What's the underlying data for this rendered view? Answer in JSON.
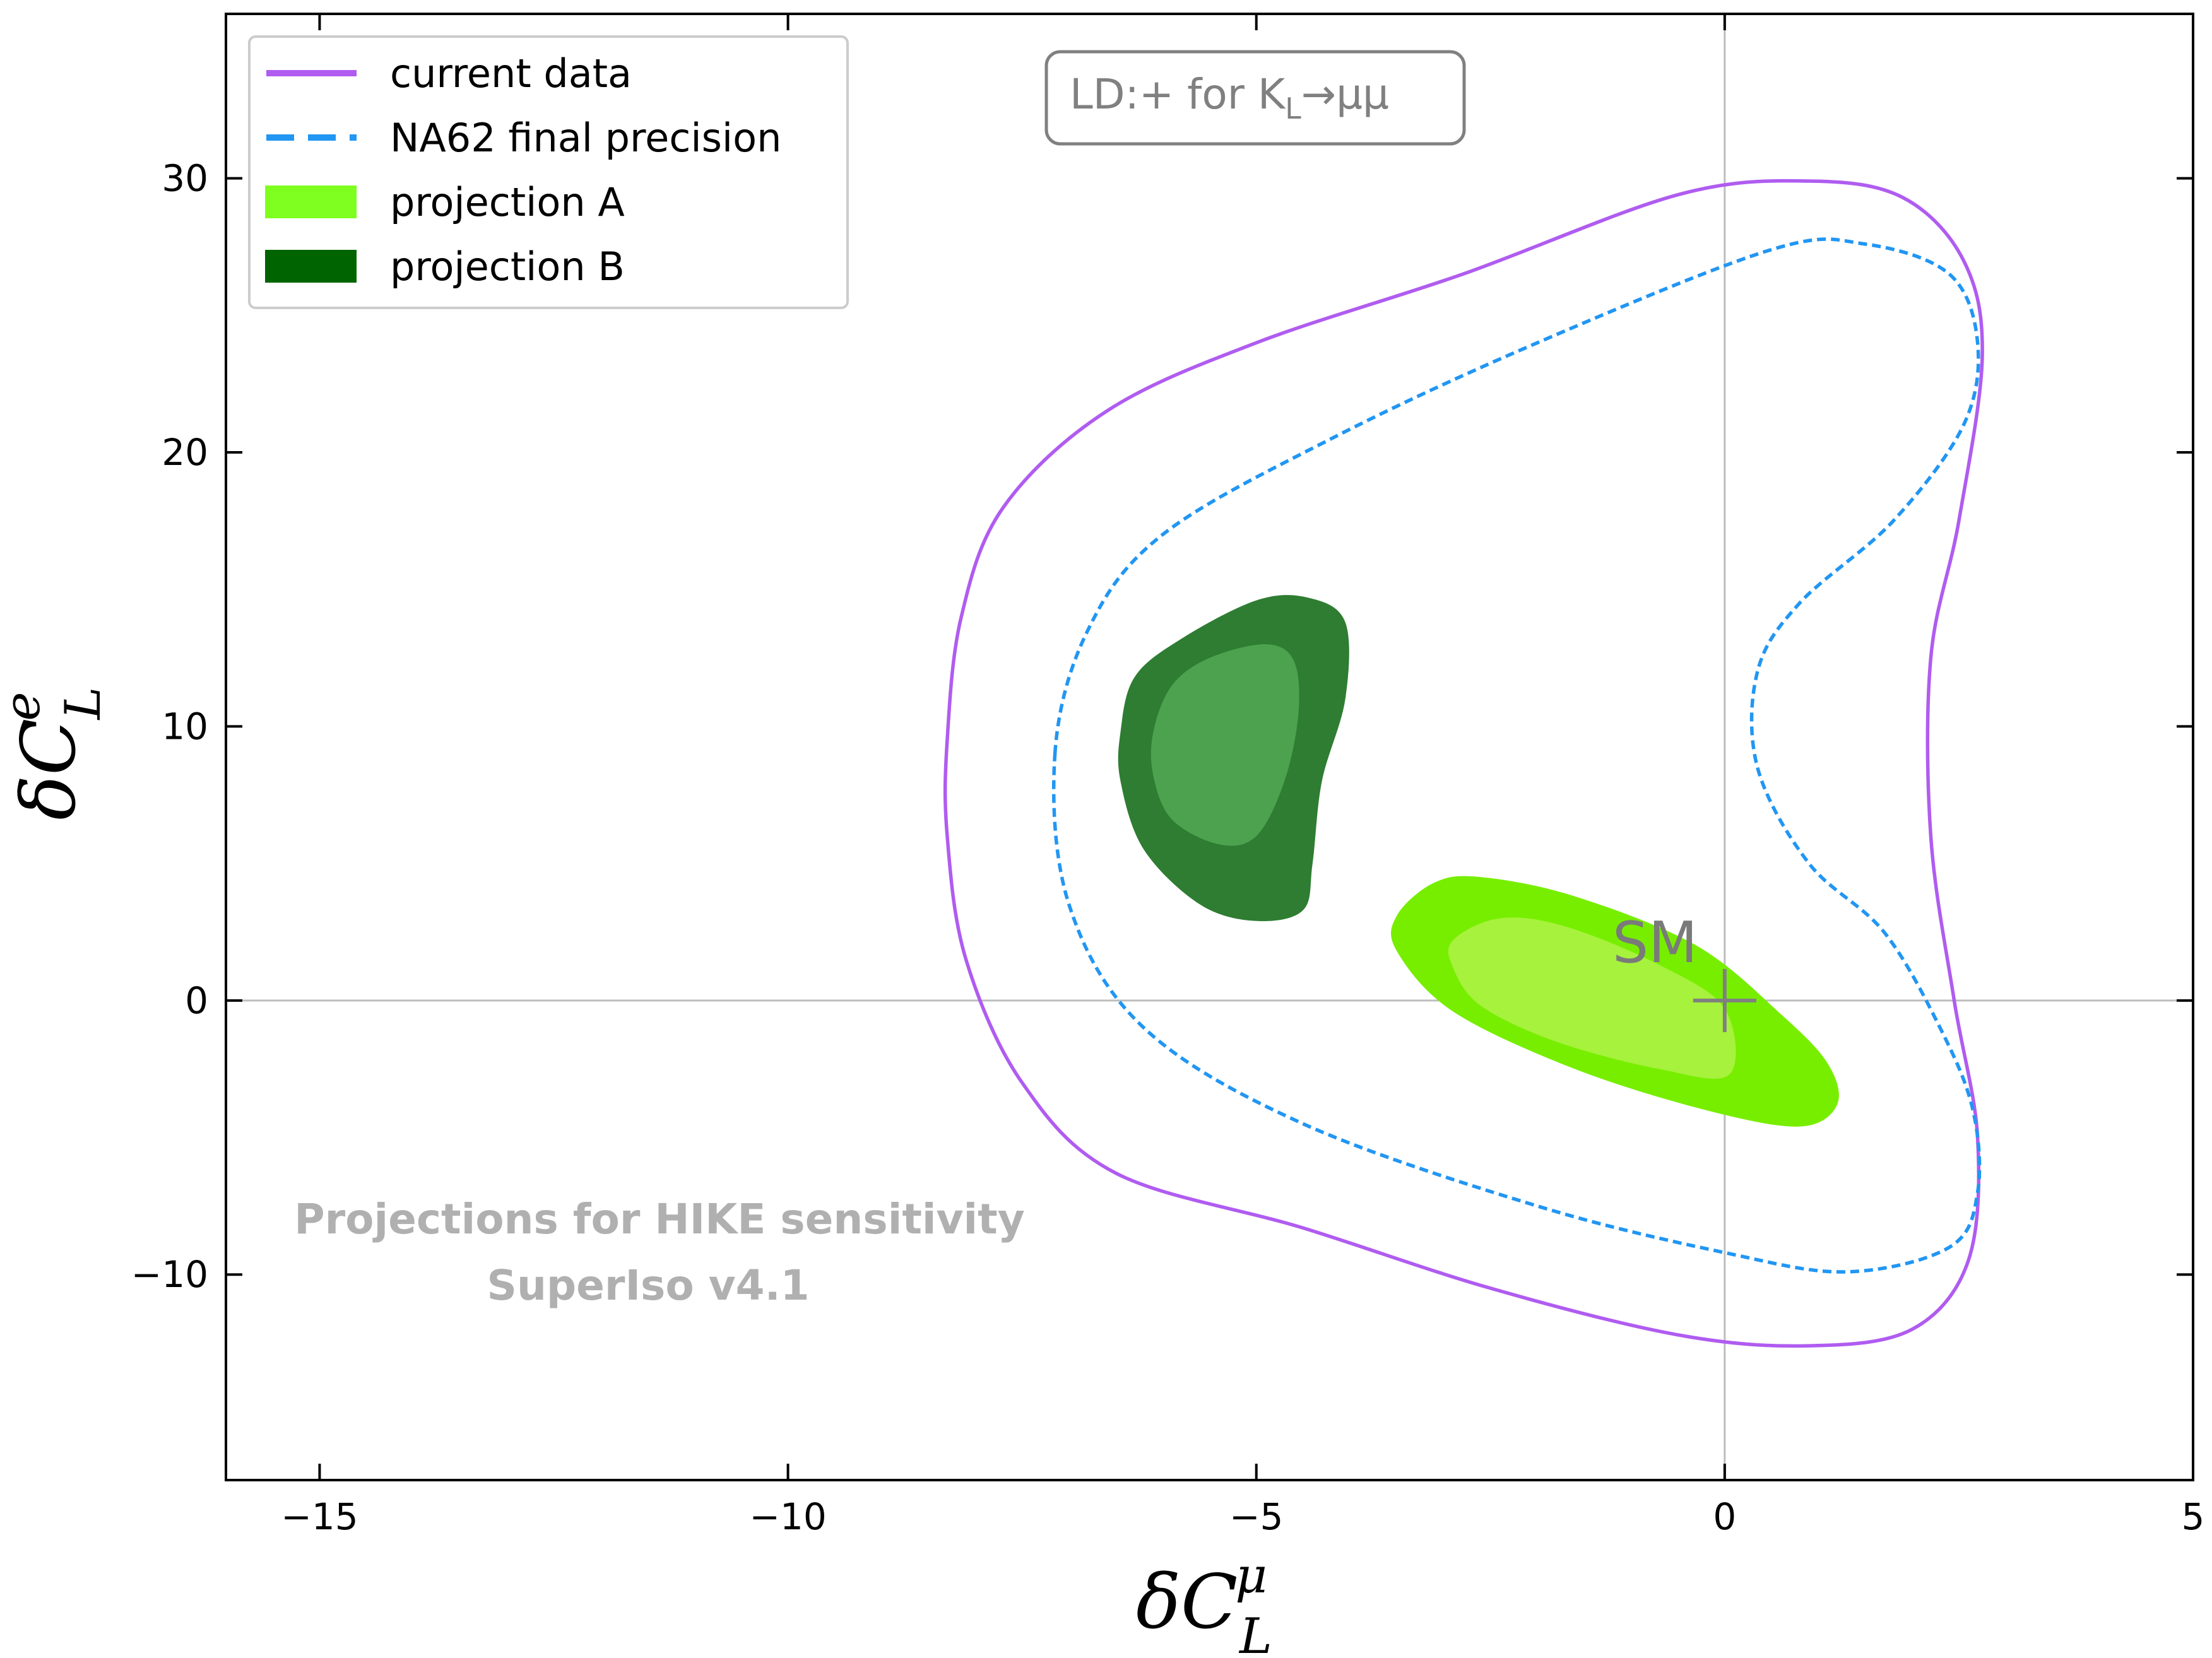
{
  "chart_data": {
    "type": "contour",
    "xlabel_base": "δC",
    "xlabel_sub": "L",
    "xlabel_sup": "μ",
    "ylabel_base": "δC",
    "ylabel_sub": "L",
    "ylabel_sup": "e",
    "xlim": [
      -16,
      5
    ],
    "ylim": [
      -17.5,
      36
    ],
    "xticks": [
      {
        "value": -15,
        "label": "−15"
      },
      {
        "value": -10,
        "label": "−10"
      },
      {
        "value": -5,
        "label": "−5"
      },
      {
        "value": 0,
        "label": "0"
      },
      {
        "value": 5,
        "label": "5"
      }
    ],
    "yticks": [
      {
        "value": -10,
        "label": "−10"
      },
      {
        "value": 0,
        "label": "0"
      },
      {
        "value": 10,
        "label": "10"
      },
      {
        "value": 20,
        "label": "20"
      },
      {
        "value": 30,
        "label": "30"
      }
    ],
    "grid": false,
    "reference_lines": {
      "x": 0,
      "y": 0,
      "color": "#bdbdbd"
    },
    "legend_position": "top-left",
    "legend": [
      {
        "label": "current data",
        "style": "line",
        "color": "#b05cf0"
      },
      {
        "label": "NA62 final precision",
        "style": "dashed",
        "color": "#2196f3"
      },
      {
        "label": "projection A",
        "style": "fill",
        "color": "#7fff1f"
      },
      {
        "label": "projection B",
        "style": "fill",
        "color": "#006400"
      }
    ],
    "annotation_box": {
      "text_main": "LD:+ for K",
      "text_sub": "L",
      "text_tail": "→μμ"
    },
    "watermark": [
      "Projections for HIKE sensitivity",
      "SuperIso v4.1"
    ],
    "sm_point": {
      "x": 0,
      "y": 0,
      "label": "SM"
    },
    "series": [
      {
        "name": "current data",
        "kind": "line",
        "color": "#b05cf0",
        "points": [
          [
            -8.3,
            9.5
          ],
          [
            -8.15,
            14
          ],
          [
            -7.7,
            18
          ],
          [
            -6.6,
            21.5
          ],
          [
            -5,
            24
          ],
          [
            -2.8,
            26.5
          ],
          [
            -0.5,
            29.4
          ],
          [
            0.9,
            29.9
          ],
          [
            1.9,
            29.3
          ],
          [
            2.55,
            27
          ],
          [
            2.75,
            23.5
          ],
          [
            2.5,
            17.5
          ],
          [
            2.2,
            12.5
          ],
          [
            2.2,
            6
          ],
          [
            2.45,
            0
          ],
          [
            2.7,
            -5
          ],
          [
            2.6,
            -9.5
          ],
          [
            2,
            -12
          ],
          [
            0.9,
            -12.6
          ],
          [
            -0.5,
            -12.2
          ],
          [
            -2.5,
            -10.5
          ],
          [
            -4.5,
            -8.3
          ],
          [
            -6.5,
            -6.3
          ],
          [
            -7.5,
            -3
          ],
          [
            -8.1,
            1.5
          ],
          [
            -8.3,
            6
          ],
          [
            -8.3,
            9.5
          ]
        ]
      },
      {
        "name": "NA62 final precision",
        "kind": "dashed",
        "color": "#2196f3",
        "points": [
          [
            -7.15,
            9
          ],
          [
            -6.8,
            13.5
          ],
          [
            -6,
            17
          ],
          [
            -4.2,
            20.5
          ],
          [
            -2,
            24
          ],
          [
            0.5,
            27.4
          ],
          [
            1.5,
            27.6
          ],
          [
            2.4,
            26.5
          ],
          [
            2.7,
            24
          ],
          [
            2.55,
            21
          ],
          [
            1.8,
            17.5
          ],
          [
            0.8,
            14.5
          ],
          [
            0.35,
            12
          ],
          [
            0.35,
            8.5
          ],
          [
            0.9,
            5
          ],
          [
            1.7,
            2.5
          ],
          [
            2.3,
            -1
          ],
          [
            2.65,
            -4
          ],
          [
            2.7,
            -7
          ],
          [
            2.4,
            -9
          ],
          [
            1.3,
            -9.9
          ],
          [
            0,
            -9.2
          ],
          [
            -2,
            -7.5
          ],
          [
            -4.5,
            -4.5
          ],
          [
            -6.2,
            -1
          ],
          [
            -7,
            3.5
          ],
          [
            -7.15,
            9
          ]
        ]
      },
      {
        "name": "projection B",
        "kind": "fill",
        "color": "#2e7d32",
        "points": [
          [
            -6.45,
            9.8
          ],
          [
            -6.3,
            11.8
          ],
          [
            -5.8,
            13.2
          ],
          [
            -5,
            14.6
          ],
          [
            -4.45,
            14.7
          ],
          [
            -4.05,
            13.8
          ],
          [
            -4.05,
            11
          ],
          [
            -4.3,
            8
          ],
          [
            -4.4,
            5
          ],
          [
            -4.5,
            3.3
          ],
          [
            -5,
            2.9
          ],
          [
            -5.6,
            3.5
          ],
          [
            -6.2,
            5.5
          ],
          [
            -6.45,
            8
          ],
          [
            -6.45,
            9.8
          ]
        ]
      },
      {
        "name": "projection B (inner)",
        "kind": "fill",
        "color": "#4ca24e",
        "points": [
          [
            -6.1,
            9.8
          ],
          [
            -5.9,
            11.5
          ],
          [
            -5.5,
            12.5
          ],
          [
            -4.9,
            13
          ],
          [
            -4.6,
            12.4
          ],
          [
            -4.55,
            10.5
          ],
          [
            -4.7,
            8
          ],
          [
            -5,
            6
          ],
          [
            -5.4,
            5.7
          ],
          [
            -5.9,
            6.6
          ],
          [
            -6.1,
            8.2
          ],
          [
            -6.1,
            9.8
          ]
        ]
      },
      {
        "name": "projection A",
        "kind": "fill",
        "color": "#77ee00",
        "points": [
          [
            -3.5,
            3.1
          ],
          [
            -3.1,
            4.3
          ],
          [
            -2.6,
            4.5
          ],
          [
            -1.6,
            3.8
          ],
          [
            -0.3,
            2
          ],
          [
            0.6,
            -0.5
          ],
          [
            1.1,
            -2.3
          ],
          [
            1.2,
            -3.8
          ],
          [
            0.8,
            -4.6
          ],
          [
            -0.2,
            -4
          ],
          [
            -1.6,
            -2.5
          ],
          [
            -2.9,
            -0.4
          ],
          [
            -3.5,
            1.8
          ],
          [
            -3.5,
            3.1
          ]
        ]
      },
      {
        "name": "projection A (inner)",
        "kind": "fill",
        "color": "#a6f23c",
        "points": [
          [
            -2.9,
            2.2
          ],
          [
            -2.4,
            3
          ],
          [
            -1.7,
            2.7
          ],
          [
            -0.7,
            1.3
          ],
          [
            0,
            -0.3
          ],
          [
            0.05,
            -2.7
          ],
          [
            -0.7,
            -2.5
          ],
          [
            -1.8,
            -1.5
          ],
          [
            -2.6,
            -0.2
          ],
          [
            -2.9,
            1.2
          ],
          [
            -2.9,
            2.2
          ]
        ]
      }
    ]
  }
}
